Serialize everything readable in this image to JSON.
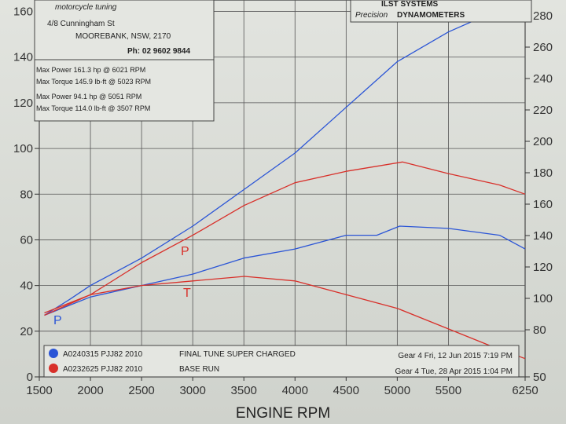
{
  "header": {
    "logo_text": "motorcycle tuning",
    "address_line1": "4/8 Cunningham St",
    "address_line2": "MOOREBANK, NSW, 2170",
    "phone": "Ph: 02 9602 9844",
    "brand_top": "ILST SYSTEMS",
    "brand_sub": "Precision",
    "brand_main": "DYNAMOMETERS"
  },
  "summary": {
    "blue_power": "Max Power 161.3 hp @ 6021 RPM",
    "blue_torque": "Max Torque 145.9 lb-ft @ 5023 RPM",
    "red_power": "Max Power 94.1 hp @ 5051 RPM",
    "red_torque": "Max Torque 114.0 lb-ft @ 3507 RPM"
  },
  "legend": {
    "rows": [
      {
        "id": "A0240315 PJJ82 2010",
        "desc": "FINAL TUNE SUPER CHARGED",
        "date": "Gear 4 Fri, 12 Jun 2015 7:19 PM",
        "color": "#2b55d6"
      },
      {
        "id": "A0232625 PJJ82 2010",
        "desc": "BASE RUN",
        "date": "Gear 4 Tue, 28 Apr 2015 1:04 PM",
        "color": "#d8302a"
      }
    ]
  },
  "markers": {
    "power": "P",
    "torque": "T"
  },
  "chart_data": {
    "type": "line",
    "title": "",
    "xlabel": "ENGINE RPM",
    "ylabel": "",
    "xlim": [
      1500,
      6250
    ],
    "ylim": [
      0,
      165
    ],
    "y2lim": [
      50,
      290
    ],
    "x_ticks": [
      1500,
      2000,
      2500,
      3000,
      3500,
      4000,
      4500,
      5000,
      5500,
      6250
    ],
    "y_ticks": [
      0,
      20,
      40,
      60,
      80,
      100,
      120,
      140,
      160
    ],
    "y2_ticks": [
      50,
      80,
      100,
      120,
      140,
      160,
      180,
      200,
      220,
      240,
      260,
      280
    ],
    "grid": true,
    "series": [
      {
        "name": "A0240315 PJJ82 2010 power",
        "color": "#2b55d6",
        "x": [
          1550,
          1800,
          2000,
          2500,
          3000,
          3500,
          4000,
          4500,
          5000,
          5500,
          6021,
          6250
        ],
        "y": [
          27,
          34,
          40,
          52,
          66,
          82,
          98,
          118,
          138,
          151,
          161.3,
          158
        ]
      },
      {
        "name": "A0240315 PJJ82 2010 torque",
        "color": "#2b55d6",
        "x": [
          1550,
          2000,
          2500,
          3000,
          3500,
          4000,
          4500,
          4800,
          5023,
          5500,
          6000,
          6250
        ],
        "y": [
          27,
          35,
          40,
          45,
          52,
          56,
          62,
          62,
          66,
          65,
          62,
          56
        ]
      },
      {
        "name": "A0232625 PJJ82 2010 power",
        "color": "#d8302a",
        "x": [
          1550,
          2000,
          2500,
          3000,
          3500,
          4000,
          4500,
          5051,
          5500,
          6000,
          6250
        ],
        "y": [
          28,
          36,
          50,
          62,
          75,
          85,
          90,
          94.1,
          89,
          84,
          80
        ]
      },
      {
        "name": "A0232625 PJJ82 2010 torque",
        "color": "#d8302a",
        "x": [
          1550,
          2000,
          2500,
          3000,
          3507,
          4000,
          4500,
          5000,
          5500,
          6000,
          6250
        ],
        "y": [
          27,
          36,
          40,
          42,
          44,
          42,
          36,
          30,
          21,
          12,
          8
        ]
      }
    ]
  }
}
